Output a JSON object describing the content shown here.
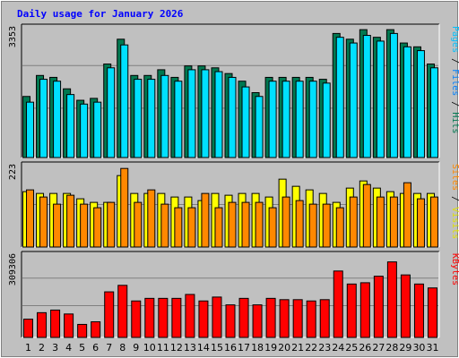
{
  "chart_data": {
    "type": "bar",
    "title": "Daily usage for January 2026",
    "x": [
      "1",
      "2",
      "3",
      "4",
      "5",
      "6",
      "7",
      "8",
      "9",
      "10",
      "11",
      "12",
      "13",
      "14",
      "15",
      "16",
      "17",
      "18",
      "19",
      "20",
      "21",
      "22",
      "23",
      "24",
      "25",
      "26",
      "27",
      "28",
      "29",
      "30",
      "31"
    ],
    "weekend_days": [
      "3",
      "4",
      "10",
      "11",
      "17",
      "18",
      "24",
      "25",
      "31"
    ],
    "colors": {
      "background": "#c0c0c0",
      "title": "#0000ff",
      "hits": "#007850",
      "files": "#00e0ff",
      "pages": "#00c0ff",
      "visits": "#ffff00",
      "sites": "#ff8800",
      "kbytes": "#ff0000",
      "weekday_tick": "#000000",
      "weekend_tick": "#007850"
    },
    "panels": [
      {
        "id": "hits",
        "ymax": 3353,
        "ymax_label": "3353",
        "side_label": [
          {
            "text": "Pages",
            "color": "#00c0ff"
          },
          {
            "text": " / ",
            "color": "#000000"
          },
          {
            "text": "Files",
            "color": "#0080ff"
          },
          {
            "text": " / ",
            "color": "#000000"
          },
          {
            "text": "Hits",
            "color": "#007850"
          }
        ],
        "series": [
          {
            "name": "Hits",
            "color": "#007850",
            "values": [
              1600,
              2150,
              2100,
              1800,
              1500,
              1550,
              2450,
              3100,
              2150,
              2150,
              2300,
              2100,
              2400,
              2400,
              2350,
              2200,
              2000,
              1700,
              2100,
              2100,
              2100,
              2100,
              2050,
              3250,
              3100,
              3350,
              3150,
              3350,
              3000,
              2900,
              2450
            ]
          },
          {
            "name": "Files",
            "color": "#00e0ff",
            "values": [
              1450,
              2050,
              2000,
              1650,
              1400,
              1450,
              2350,
              2950,
              2050,
              2050,
              2150,
              2000,
              2300,
              2300,
              2250,
              2100,
              1850,
              1600,
              2000,
              2000,
              2000,
              2000,
              1950,
              3150,
              3000,
              3200,
              3050,
              3250,
              2900,
              2800,
              2350
            ]
          }
        ]
      },
      {
        "id": "visits",
        "ymax": 223,
        "ymax_label": "223",
        "side_label": [
          {
            "text": "Sites",
            "color": "#ff8800"
          },
          {
            "text": " / ",
            "color": "#000000"
          },
          {
            "text": "Visits",
            "color": "#e0e000"
          }
        ],
        "series": [
          {
            "name": "Visits",
            "color": "#ffff00",
            "values": [
              155,
              150,
              150,
              150,
              135,
              125,
              125,
              200,
              150,
              150,
              150,
              140,
              140,
              130,
              150,
              145,
              150,
              150,
              140,
              190,
              170,
              160,
              150,
              125,
              165,
              185,
              165,
              155,
              150,
              150,
              150
            ]
          },
          {
            "name": "Sites",
            "color": "#ff8800",
            "values": [
              160,
              140,
              120,
              145,
              120,
              110,
              125,
              220,
              125,
              160,
              120,
              110,
              110,
              150,
              110,
              125,
              125,
              125,
              110,
              140,
              130,
              120,
              120,
              110,
              140,
              175,
              140,
              140,
              180,
              135,
              140
            ]
          }
        ]
      },
      {
        "id": "kbytes",
        "ymax": 309306,
        "ymax_label": "309306",
        "side_label": [
          {
            "text": "KBytes",
            "color": "#ff0000"
          }
        ],
        "series": [
          {
            "name": "KBytes",
            "color": "#ff0000",
            "values": [
              70000,
              95000,
              105000,
              90000,
              50000,
              60000,
              175000,
              200000,
              140000,
              150000,
              150000,
              150000,
              165000,
              140000,
              155000,
              125000,
              150000,
              125000,
              150000,
              145000,
              145000,
              140000,
              145000,
              255000,
              205000,
              210000,
              235000,
              290000,
              240000,
              205000,
              190000
            ]
          }
        ]
      }
    ]
  }
}
